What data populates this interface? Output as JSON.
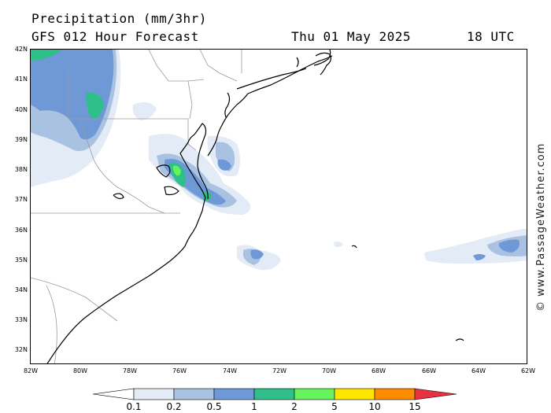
{
  "header": {
    "title": "Precipitation (mm/3hr)",
    "model": "GFS 012 Hour Forecast",
    "date": "Thu 01 May 2025",
    "time": "18 UTC"
  },
  "map": {
    "lat_labels": [
      "42N",
      "41N",
      "40N",
      "39N",
      "38N",
      "37N",
      "36N",
      "35N",
      "34N",
      "33N",
      "32N"
    ],
    "lon_labels": [
      "82W",
      "80W",
      "78W",
      "76W",
      "74W",
      "72W",
      "70W",
      "68W",
      "66W",
      "64W",
      "62W"
    ],
    "copyright": "© www.PassageWeather.com"
  },
  "legend": {
    "thresholds": [
      "0.1",
      "0.2",
      "0.5",
      "1",
      "2",
      "5",
      "10",
      "15"
    ],
    "colors": [
      "#ffffff",
      "#e3ebf6",
      "#a9c2e2",
      "#6f98d6",
      "#2fbf8a",
      "#66f25b",
      "#ffe600",
      "#ff8c00",
      "#e6333f"
    ]
  }
}
